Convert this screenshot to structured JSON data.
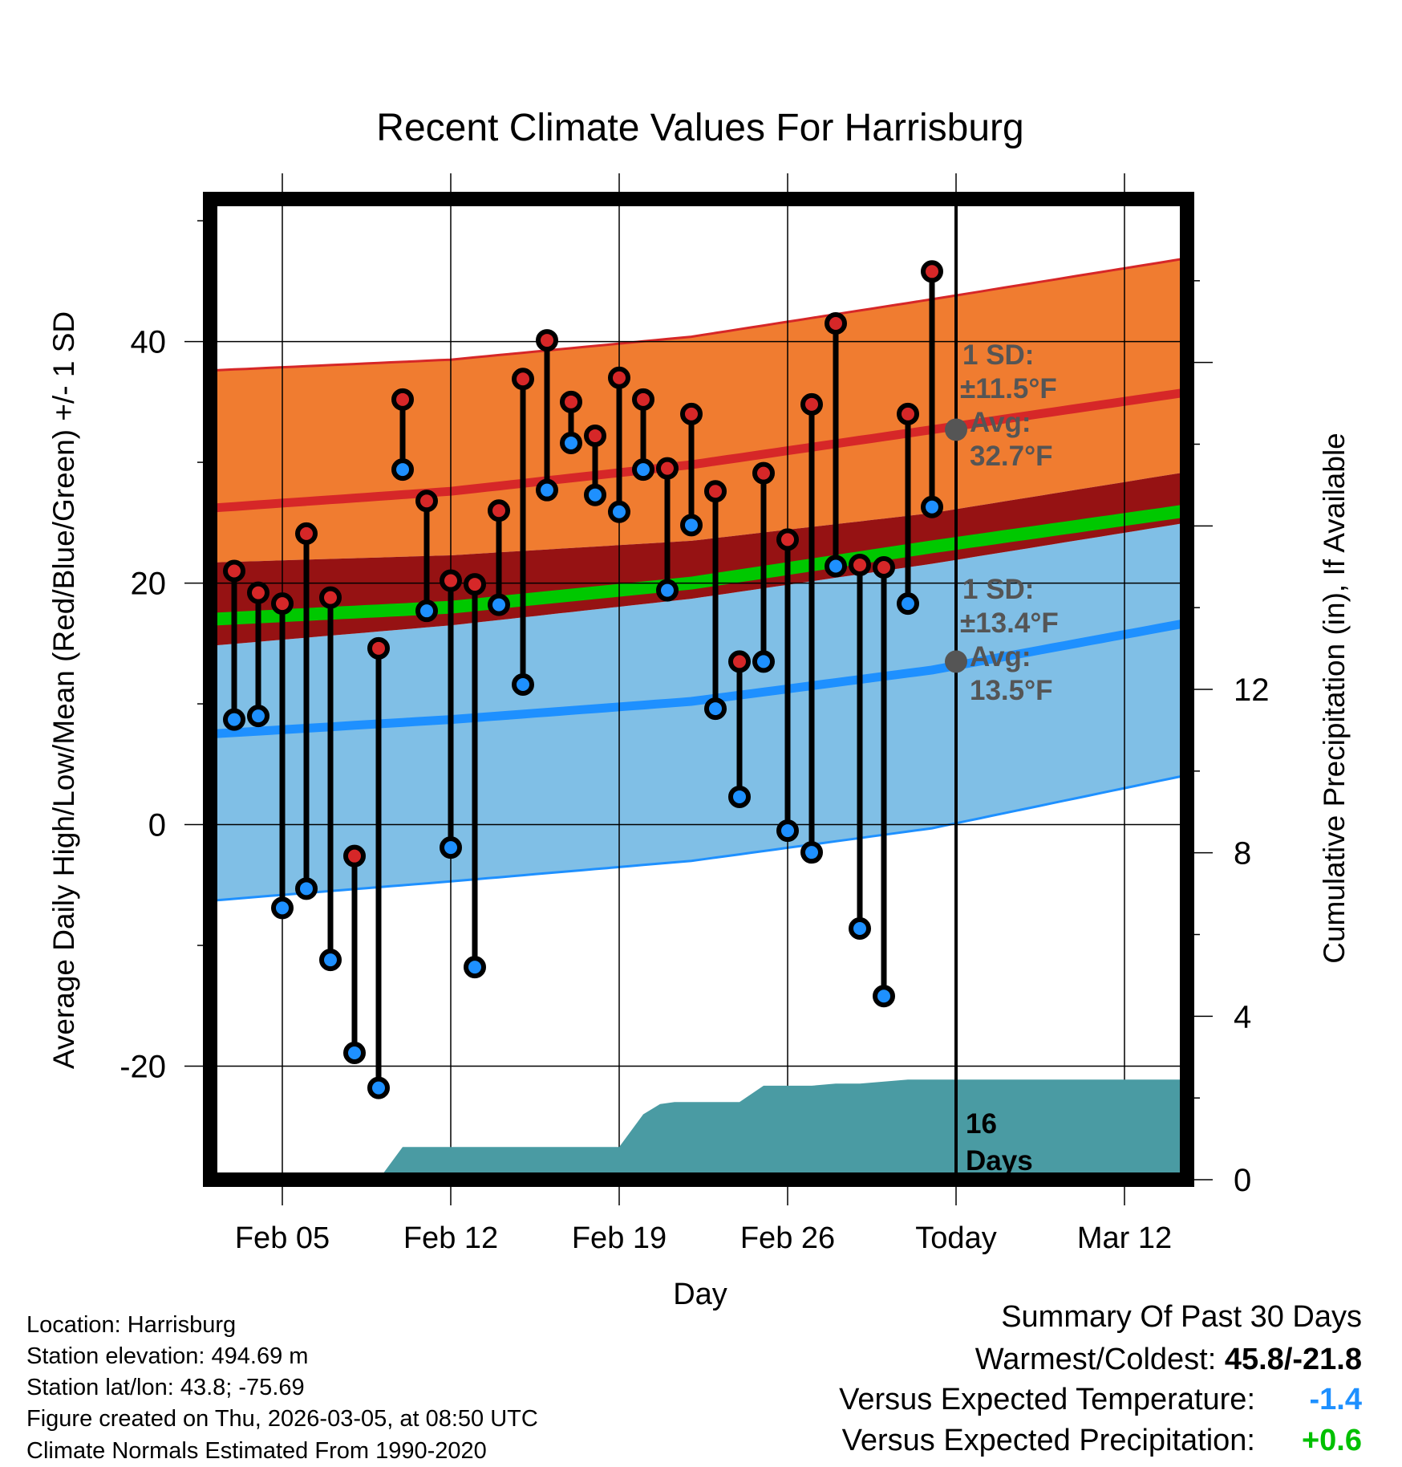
{
  "chart_data": {
    "type": "line",
    "title": "Recent Climate Values For Harrisburg",
    "xlabel": "Day",
    "ylabel": "Average Daily High/Low/Mean (Red/Blue/Green) +/- 1 SD",
    "y2label": "Cumulative Precipitation (in), If Available",
    "ylim": [
      -29.4,
      51.8
    ],
    "y2lim": [
      0,
      24
    ],
    "xlim": [
      0,
      40.6
    ],
    "x_ticks": [
      {
        "day": 3,
        "label": "Feb 05"
      },
      {
        "day": 10,
        "label": "Feb 12"
      },
      {
        "day": 17,
        "label": "Feb 19"
      },
      {
        "day": 24,
        "label": "Feb 26"
      },
      {
        "day": 31,
        "label": "Today"
      },
      {
        "day": 38,
        "label": "Mar 12"
      }
    ],
    "y_ticks": [
      -20,
      0,
      20,
      40
    ],
    "y2_ticks": [
      0,
      4,
      8,
      12
    ],
    "today_day": 31,
    "normals": {
      "x": [
        0,
        10,
        20,
        30,
        40.6
      ],
      "high_avg": [
        26.2,
        27.6,
        29.8,
        32.7,
        35.8
      ],
      "high_lower": [
        21.7,
        22.3,
        23.5,
        25.8,
        29.2
      ],
      "high_upper": [
        37.6,
        38.5,
        40.4,
        43.5,
        46.9
      ],
      "mean_avg": [
        17.0,
        18.0,
        20.0,
        23.0,
        26.0
      ],
      "low_avg": [
        7.5,
        8.7,
        10.2,
        12.8,
        16.7
      ],
      "low_upper": [
        14.8,
        16.5,
        18.7,
        21.6,
        25.0
      ],
      "low_lower": [
        -6.3,
        -4.7,
        -3.0,
        -0.3,
        4.1
      ]
    },
    "series": [
      {
        "name": "Daily High",
        "color": "#d62728",
        "values": [
          21.0,
          19.2,
          18.3,
          24.1,
          18.8,
          -2.6,
          14.6,
          35.2,
          26.8,
          20.2,
          19.9,
          26.0,
          36.9,
          40.1,
          35.0,
          32.2,
          37.0,
          35.2,
          29.5,
          34.0,
          27.6,
          13.5,
          29.1,
          23.6,
          34.8,
          41.5,
          21.5,
          21.3,
          34.0,
          45.8
        ]
      },
      {
        "name": "Daily Low",
        "color": "#1e90ff",
        "values": [
          8.7,
          9.0,
          -6.9,
          -5.3,
          -11.2,
          -18.9,
          -21.8,
          29.4,
          17.7,
          -1.9,
          -11.8,
          18.2,
          11.6,
          27.7,
          31.6,
          27.3,
          25.9,
          29.4,
          19.4,
          24.8,
          9.6,
          2.3,
          13.5,
          -0.5,
          -2.3,
          21.4,
          -8.6,
          -14.2,
          18.3,
          26.3
        ]
      }
    ],
    "precip_x": [
      7,
      8,
      17,
      18,
      18.7,
      19.3,
      20,
      21,
      22,
      23,
      24,
      25,
      26,
      27,
      28,
      29,
      30,
      31,
      40.6
    ],
    "precip_y": [
      0,
      0.8,
      0.8,
      1.6,
      1.85,
      1.9,
      1.9,
      1.9,
      1.9,
      2.3,
      2.3,
      2.3,
      2.35,
      2.35,
      2.4,
      2.45,
      2.45,
      2.45,
      2.45
    ],
    "high_annotation": {
      "value": 32.7,
      "line1": "1 SD:",
      "line2": "±11.5°F",
      "line3": "Avg:",
      "line4": "32.7°F"
    },
    "low_annotation": {
      "value": 13.5,
      "line1": "1 SD:",
      "line2": "±13.4°F",
      "line3": "Avg:",
      "line4": "13.5°F"
    },
    "precip_label": {
      "line1": "16",
      "line2": "Days"
    },
    "colors": {
      "high_band": "#f07c30",
      "mean_band": "#961213",
      "mean_line": "#00c800",
      "low_band": "#80bfe6",
      "high_line": "#d62728",
      "low_line": "#1e90ff",
      "precip": "#4a9ba3",
      "annotation": "#555555"
    }
  },
  "footer": {
    "location": "Location: Harrisburg",
    "elevation": "Station elevation: 494.69 m",
    "latlon": "Station lat/lon: 43.8; -75.69",
    "created": "Figure created on Thu, 2026-03-05, at 08:50 UTC",
    "normals": "Climate Normals Estimated From 1990-2020"
  },
  "summary": {
    "title": "Summary Of Past 30 Days",
    "warm_cold_label": "Warmest/Coldest:",
    "warm_cold_value": "45.8/-21.8",
    "temp_label": "Versus Expected Temperature:",
    "temp_value": "-1.4",
    "temp_color": "#1e90ff",
    "precip_label": "Versus Expected Precipitation:",
    "precip_value": "+0.6",
    "precip_color": "#00c000"
  }
}
